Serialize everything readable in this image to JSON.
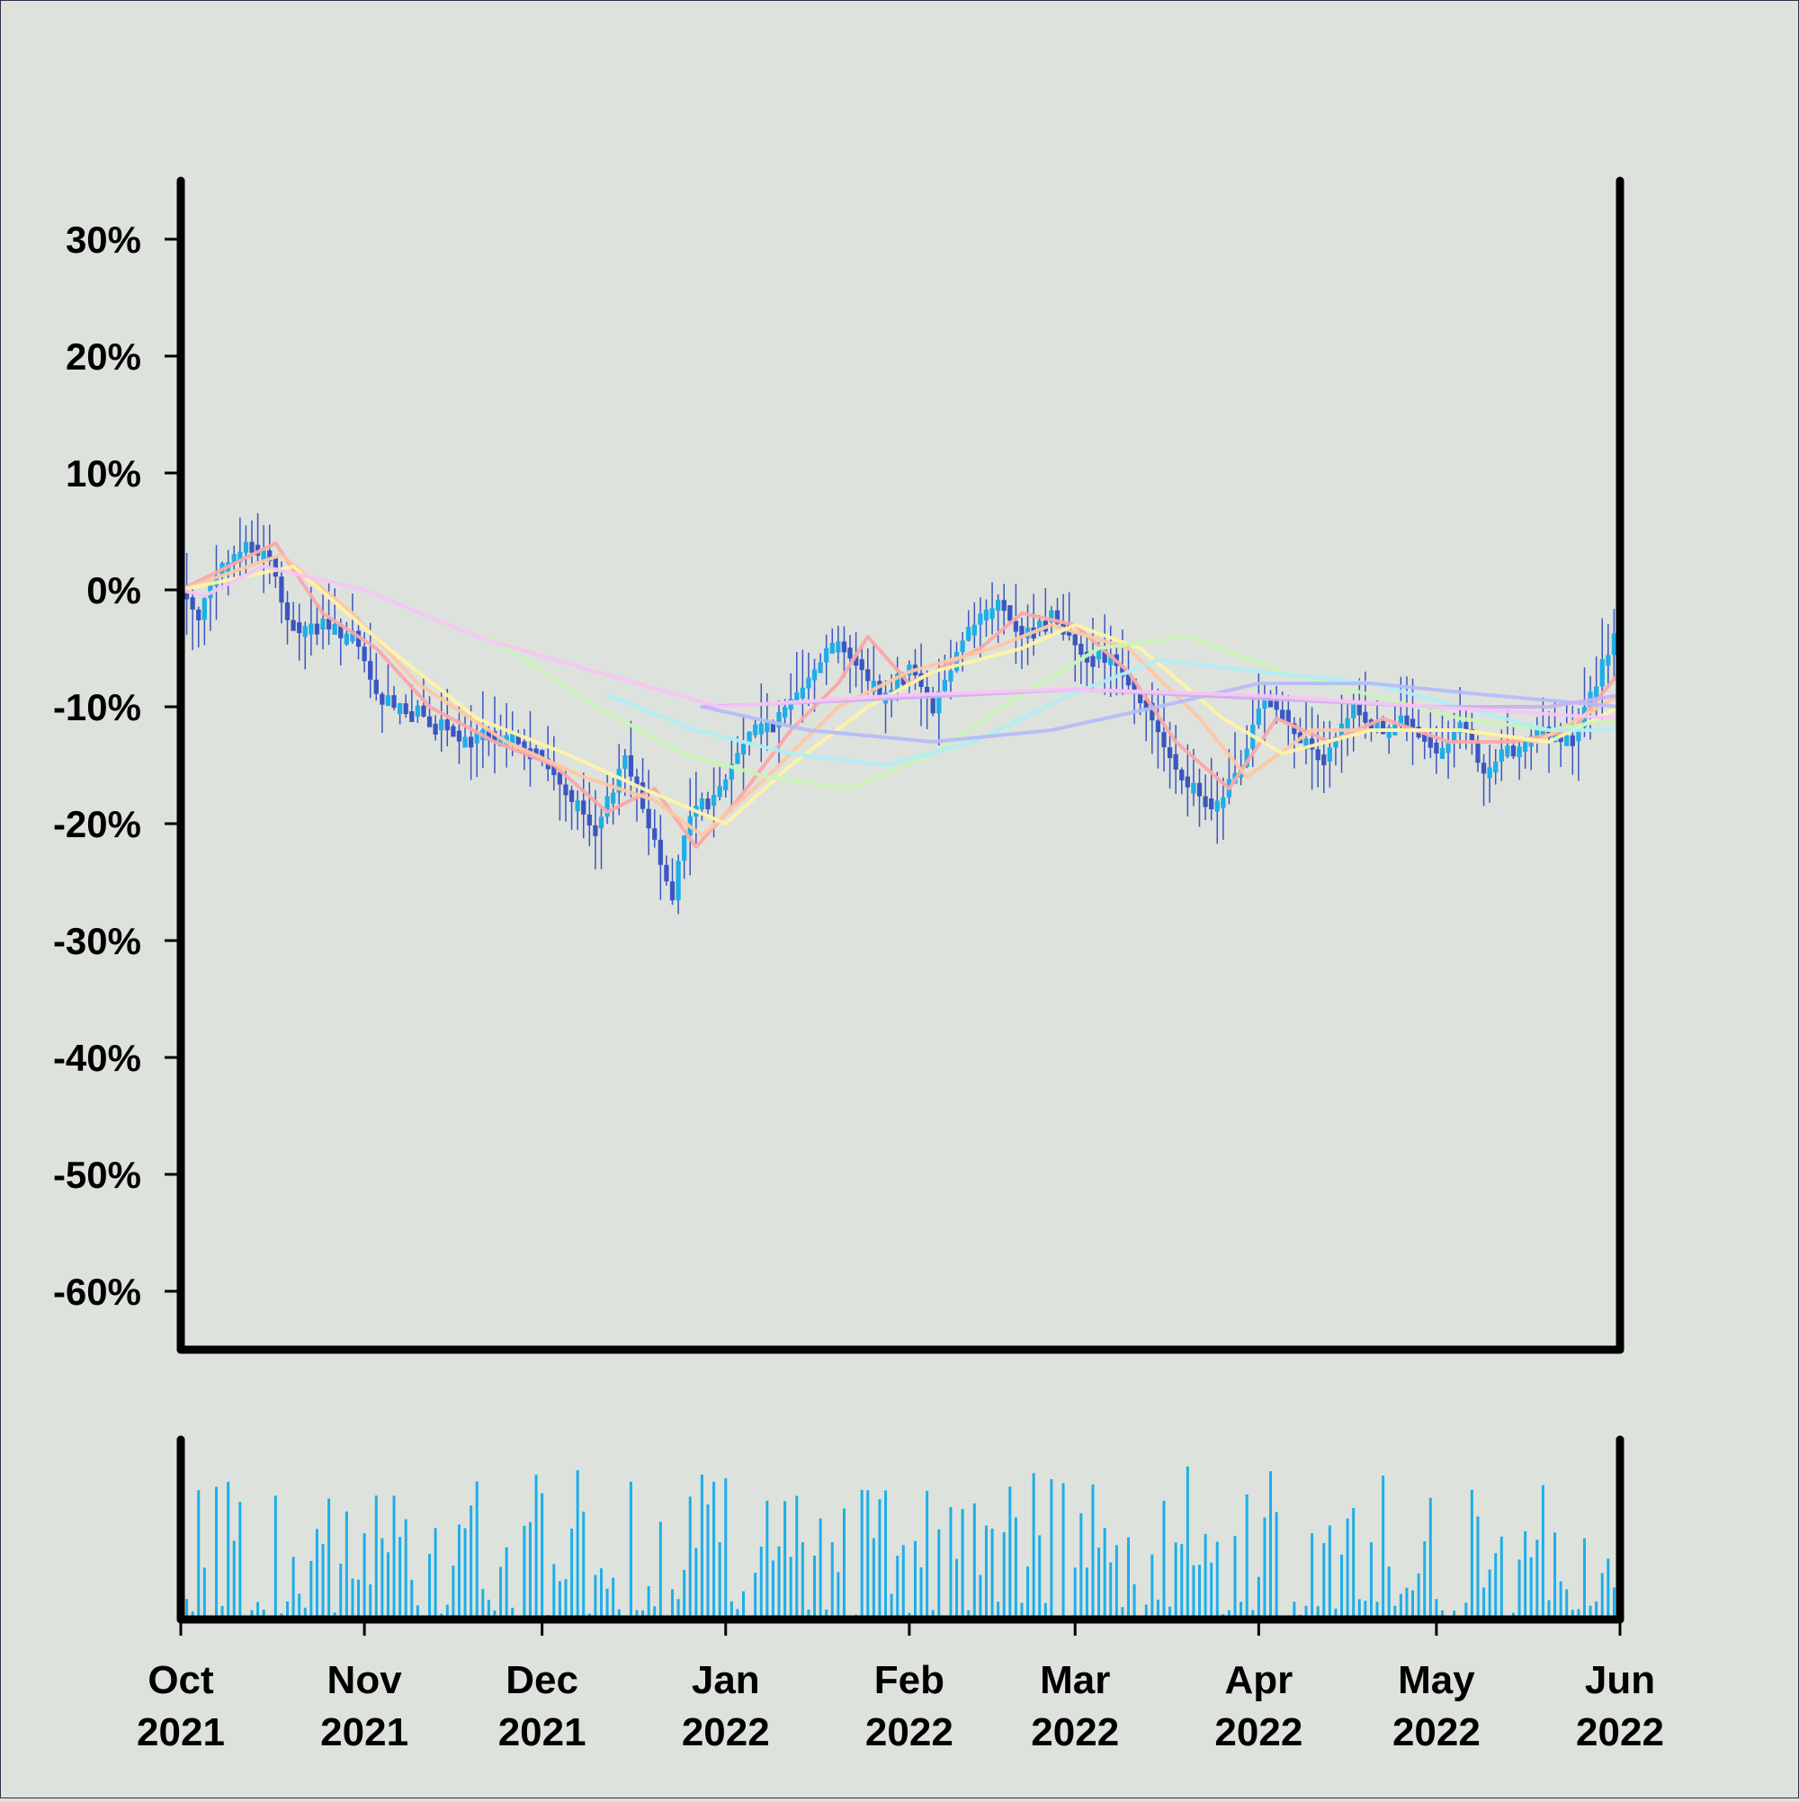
{
  "chart_data": {
    "type": "candlestick",
    "title": "",
    "xlabel": "",
    "ylabel": "",
    "price": {
      "ylim": [
        -0.65,
        0.35
      ],
      "yticks": [
        0.3,
        0.2,
        0.1,
        0.0,
        -0.1,
        -0.2,
        -0.3,
        -0.4,
        -0.5,
        -0.6
      ],
      "ytick_labels": [
        "30%",
        "20%",
        "10%",
        "0%",
        "-10%",
        "-20%",
        "-30%",
        "-40%",
        "-50%",
        "-60%"
      ],
      "close_path": [
        [
          "2021-10-01",
          0.0
        ],
        [
          "2021-10-04",
          -0.02
        ],
        [
          "2021-10-08",
          0.02
        ],
        [
          "2021-10-12",
          0.04
        ],
        [
          "2021-10-16",
          0.03
        ],
        [
          "2021-10-19",
          -0.03
        ],
        [
          "2021-10-25",
          -0.03
        ],
        [
          "2021-10-30",
          -0.04
        ],
        [
          "2021-11-03",
          -0.09
        ],
        [
          "2021-11-08",
          -0.1
        ],
        [
          "2021-11-12",
          -0.11
        ],
        [
          "2021-11-18",
          -0.13
        ],
        [
          "2021-11-24",
          -0.12
        ],
        [
          "2021-11-30",
          -0.14
        ],
        [
          "2021-12-05",
          -0.17
        ],
        [
          "2021-12-10",
          -0.21
        ],
        [
          "2021-12-15",
          -0.14
        ],
        [
          "2021-12-19",
          -0.2
        ],
        [
          "2021-12-23",
          -0.26
        ],
        [
          "2021-12-26",
          -0.19
        ],
        [
          "2021-12-31",
          -0.17
        ],
        [
          "2022-01-05",
          -0.12
        ],
        [
          "2022-01-10",
          -0.11
        ],
        [
          "2022-01-15",
          -0.07
        ],
        [
          "2022-01-20",
          -0.04
        ],
        [
          "2022-01-24",
          -0.07
        ],
        [
          "2022-01-28",
          -0.09
        ],
        [
          "2022-02-01",
          -0.06
        ],
        [
          "2022-02-05",
          -0.1
        ],
        [
          "2022-02-11",
          -0.03
        ],
        [
          "2022-02-16",
          -0.01
        ],
        [
          "2022-02-20",
          -0.04
        ],
        [
          "2022-02-25",
          -0.02
        ],
        [
          "2022-03-02",
          -0.05
        ],
        [
          "2022-03-08",
          -0.06
        ],
        [
          "2022-03-13",
          -0.1
        ],
        [
          "2022-03-18",
          -0.15
        ],
        [
          "2022-03-24",
          -0.19
        ],
        [
          "2022-03-29",
          -0.15
        ],
        [
          "2022-04-02",
          -0.09
        ],
        [
          "2022-04-06",
          -0.11
        ],
        [
          "2022-04-12",
          -0.15
        ],
        [
          "2022-04-17",
          -0.1
        ],
        [
          "2022-04-22",
          -0.12
        ],
        [
          "2022-04-26",
          -0.11
        ],
        [
          "2022-05-01",
          -0.14
        ],
        [
          "2022-05-05",
          -0.11
        ],
        [
          "2022-05-09",
          -0.16
        ],
        [
          "2022-05-14",
          -0.13
        ],
        [
          "2022-05-19",
          -0.12
        ],
        [
          "2022-05-24",
          -0.13
        ],
        [
          "2022-05-27",
          -0.09
        ],
        [
          "2022-05-31",
          -0.04
        ],
        [
          "2022-06-01",
          -0.06
        ]
      ],
      "moving_averages": [
        {
          "color": "#f9a8a8",
          "values": [
            [
              "2021-10-01",
              0.0
            ],
            [
              "2021-10-17",
              0.04
            ],
            [
              "2021-10-25",
              -0.02
            ],
            [
              "2021-11-03",
              -0.05
            ],
            [
              "2021-11-12",
              -0.1
            ],
            [
              "2021-11-23",
              -0.13
            ],
            [
              "2021-12-03",
              -0.15
            ],
            [
              "2021-12-12",
              -0.19
            ],
            [
              "2021-12-20",
              -0.17
            ],
            [
              "2021-12-27",
              -0.22
            ],
            [
              "2022-01-03",
              -0.18
            ],
            [
              "2022-01-12",
              -0.12
            ],
            [
              "2022-01-20",
              -0.08
            ],
            [
              "2022-01-25",
              -0.04
            ],
            [
              "2022-02-01",
              -0.08
            ],
            [
              "2022-02-13",
              -0.05
            ],
            [
              "2022-02-20",
              -0.02
            ],
            [
              "2022-03-01",
              -0.03
            ],
            [
              "2022-03-10",
              -0.07
            ],
            [
              "2022-03-18",
              -0.13
            ],
            [
              "2022-03-27",
              -0.17
            ],
            [
              "2022-04-04",
              -0.11
            ],
            [
              "2022-04-13",
              -0.13
            ],
            [
              "2022-04-22",
              -0.11
            ],
            [
              "2022-05-03",
              -0.13
            ],
            [
              "2022-05-14",
              -0.13
            ],
            [
              "2022-05-24",
              -0.12
            ],
            [
              "2022-06-01",
              -0.07
            ]
          ]
        },
        {
          "color": "#fcc7a3",
          "values": [
            [
              "2021-10-01",
              0.0
            ],
            [
              "2021-10-18",
              0.03
            ],
            [
              "2021-10-30",
              -0.02
            ],
            [
              "2021-11-10",
              -0.08
            ],
            [
              "2021-11-25",
              -0.13
            ],
            [
              "2021-12-08",
              -0.16
            ],
            [
              "2021-12-20",
              -0.18
            ],
            [
              "2021-12-28",
              -0.21
            ],
            [
              "2022-01-08",
              -0.16
            ],
            [
              "2022-01-20",
              -0.1
            ],
            [
              "2022-02-01",
              -0.07
            ],
            [
              "2022-02-15",
              -0.05
            ],
            [
              "2022-02-25",
              -0.03
            ],
            [
              "2022-03-10",
              -0.05
            ],
            [
              "2022-03-22",
              -0.11
            ],
            [
              "2022-03-30",
              -0.16
            ],
            [
              "2022-04-10",
              -0.12
            ],
            [
              "2022-04-22",
              -0.12
            ],
            [
              "2022-05-05",
              -0.12
            ],
            [
              "2022-05-18",
              -0.13
            ],
            [
              "2022-06-01",
              -0.09
            ]
          ]
        },
        {
          "color": "#fdf3a8",
          "values": [
            [
              "2021-10-01",
              0.0
            ],
            [
              "2021-10-20",
              0.02
            ],
            [
              "2021-11-05",
              -0.05
            ],
            [
              "2021-11-20",
              -0.11
            ],
            [
              "2021-12-05",
              -0.14
            ],
            [
              "2021-12-18",
              -0.17
            ],
            [
              "2022-01-01",
              -0.2
            ],
            [
              "2022-01-12",
              -0.15
            ],
            [
              "2022-01-25",
              -0.1
            ],
            [
              "2022-02-05",
              -0.07
            ],
            [
              "2022-02-20",
              -0.05
            ],
            [
              "2022-03-01",
              -0.03
            ],
            [
              "2022-03-12",
              -0.05
            ],
            [
              "2022-03-26",
              -0.11
            ],
            [
              "2022-04-05",
              -0.14
            ],
            [
              "2022-04-20",
              -0.12
            ],
            [
              "2022-05-05",
              -0.12
            ],
            [
              "2022-05-20",
              -0.13
            ],
            [
              "2022-06-01",
              -0.1
            ]
          ]
        },
        {
          "color": "#c8f5b4",
          "values": [
            [
              "2021-11-22",
              -0.04
            ],
            [
              "2021-12-10",
              -0.1
            ],
            [
              "2021-12-25",
              -0.14
            ],
            [
              "2022-01-08",
              -0.16
            ],
            [
              "2022-01-22",
              -0.17
            ],
            [
              "2022-02-05",
              -0.14
            ],
            [
              "2022-02-20",
              -0.09
            ],
            [
              "2022-03-05",
              -0.05
            ],
            [
              "2022-03-20",
              -0.04
            ],
            [
              "2022-04-05",
              -0.07
            ],
            [
              "2022-04-20",
              -0.09
            ],
            [
              "2022-05-05",
              -0.11
            ],
            [
              "2022-05-20",
              -0.12
            ],
            [
              "2022-06-01",
              -0.11
            ]
          ]
        },
        {
          "color": "#aeeef4",
          "values": [
            [
              "2021-12-12",
              -0.09
            ],
            [
              "2021-12-27",
              -0.12
            ],
            [
              "2022-01-12",
              -0.14
            ],
            [
              "2022-01-28",
              -0.15
            ],
            [
              "2022-02-12",
              -0.13
            ],
            [
              "2022-02-28",
              -0.09
            ],
            [
              "2022-03-15",
              -0.06
            ],
            [
              "2022-04-01",
              -0.07
            ],
            [
              "2022-04-20",
              -0.08
            ],
            [
              "2022-05-05",
              -0.1
            ],
            [
              "2022-05-20",
              -0.12
            ],
            [
              "2022-06-01",
              -0.12
            ]
          ]
        },
        {
          "color": "#b4bdf6",
          "values": [
            [
              "2021-12-28",
              -0.1
            ],
            [
              "2022-01-15",
              -0.12
            ],
            [
              "2022-02-05",
              -0.13
            ],
            [
              "2022-02-25",
              -0.12
            ],
            [
              "2022-03-15",
              -0.1
            ],
            [
              "2022-04-01",
              -0.08
            ],
            [
              "2022-04-20",
              -0.08
            ],
            [
              "2022-05-10",
              -0.09
            ],
            [
              "2022-06-01",
              -0.1
            ]
          ]
        },
        {
          "color": "#cab0f0",
          "values": [
            [
              "2021-12-28",
              -0.1
            ],
            [
              "2022-01-20",
              -0.095
            ],
            [
              "2022-02-10",
              -0.09
            ],
            [
              "2022-03-01",
              -0.085
            ],
            [
              "2022-03-20",
              -0.09
            ],
            [
              "2022-04-10",
              -0.095
            ],
            [
              "2022-05-01",
              -0.1
            ],
            [
              "2022-05-20",
              -0.1
            ],
            [
              "2022-06-01",
              -0.09
            ]
          ]
        },
        {
          "color": "#f8c4f4",
          "values": [
            [
              "2021-10-01",
              0.0
            ],
            [
              "2021-10-05",
              -0.005
            ],
            [
              "2021-10-15",
              0.02
            ],
            [
              "2021-11-01",
              0.0
            ],
            [
              "2021-11-20",
              -0.04
            ],
            [
              "2021-12-10",
              -0.07
            ],
            [
              "2021-12-31",
              -0.1
            ],
            [
              "2022-01-31",
              -0.09
            ],
            [
              "2022-02-28",
              -0.085
            ],
            [
              "2022-03-31",
              -0.09
            ],
            [
              "2022-04-30",
              -0.1
            ],
            [
              "2022-06-01",
              -0.11
            ]
          ]
        }
      ]
    },
    "volume": {
      "seed": 7,
      "ylim": [
        0,
        1
      ]
    },
    "x": {
      "range": [
        "2021-10-01",
        "2022-06-01"
      ],
      "ticks": [
        {
          "date": "2021-10-01",
          "month": "Oct",
          "year": "2021"
        },
        {
          "date": "2021-11-01",
          "month": "Nov",
          "year": "2021"
        },
        {
          "date": "2021-12-01",
          "month": "Dec",
          "year": "2021"
        },
        {
          "date": "2022-01-01",
          "month": "Jan",
          "year": "2022"
        },
        {
          "date": "2022-02-01",
          "month": "Feb",
          "year": "2022"
        },
        {
          "date": "2022-03-01",
          "month": "Mar",
          "year": "2022"
        },
        {
          "date": "2022-04-01",
          "month": "Apr",
          "year": "2022"
        },
        {
          "date": "2022-05-01",
          "month": "May",
          "year": "2022"
        },
        {
          "date": "2022-06-01",
          "month": "Jun",
          "year": "2022"
        }
      ]
    },
    "colors": {
      "background": "#dee2dc",
      "up": "#1eaee8",
      "down": "#3a56c2",
      "volume": "#1eaee8",
      "axis": "#000000"
    },
    "grid": false,
    "legend": "none"
  }
}
